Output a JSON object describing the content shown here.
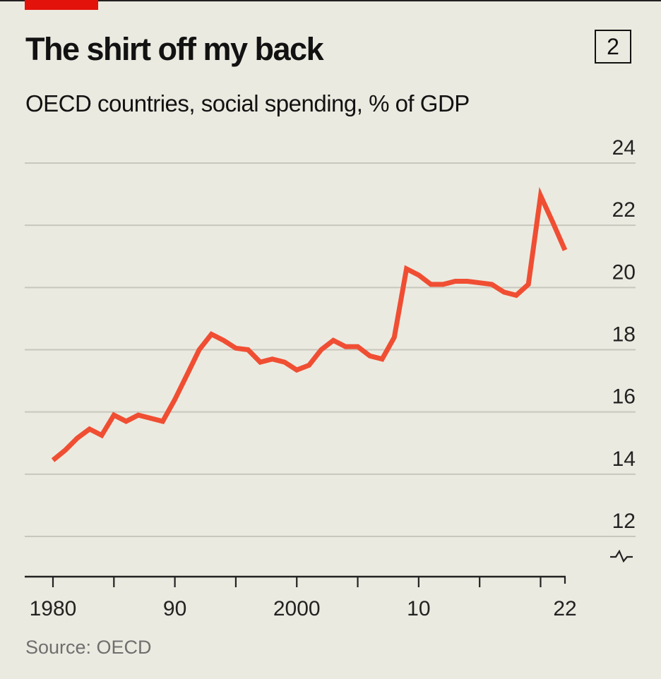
{
  "header": {
    "title": "The shirt off my back",
    "chart_number": "2",
    "subtitle": "OECD countries, social spending, % of GDP"
  },
  "footer": {
    "source": "Source: OECD"
  },
  "colors": {
    "line": "#f04e33",
    "grid": "#c8c7bd",
    "background": "#ebeae0",
    "brand": "#e3120b"
  },
  "chart_data": {
    "type": "line",
    "title": "The shirt off my back",
    "subtitle": "OECD countries, social spending, % of GDP",
    "xlabel": "",
    "ylabel": "% of GDP",
    "ylim": [
      12,
      24
    ],
    "xlim": [
      1980,
      2022
    ],
    "y_ticks": [
      "12",
      "14",
      "16",
      "18",
      "20",
      "22",
      "24"
    ],
    "y_tick_values": [
      12,
      14,
      16,
      18,
      20,
      22,
      24
    ],
    "x_tick_labels": [
      {
        "v": 1980,
        "label": "1980"
      },
      {
        "v": 1990,
        "label": "90"
      },
      {
        "v": 2000,
        "label": "2000"
      },
      {
        "v": 2010,
        "label": "10"
      },
      {
        "v": 2022,
        "label": "22"
      }
    ],
    "grid": true,
    "axis_break": true,
    "series": [
      {
        "name": "Social spending",
        "x": [
          1980,
          1981,
          1982,
          1983,
          1984,
          1985,
          1986,
          1987,
          1988,
          1989,
          1990,
          1991,
          1992,
          1993,
          1994,
          1995,
          1996,
          1997,
          1998,
          1999,
          2000,
          2001,
          2002,
          2003,
          2004,
          2005,
          2006,
          2007,
          2008,
          2009,
          2010,
          2011,
          2012,
          2013,
          2014,
          2015,
          2016,
          2017,
          2018,
          2019,
          2020,
          2021,
          2022
        ],
        "values": [
          14.45,
          14.77,
          15.16,
          15.45,
          15.25,
          15.9,
          15.7,
          15.9,
          15.8,
          15.7,
          16.4,
          17.2,
          18.0,
          18.5,
          18.3,
          18.05,
          18.0,
          17.6,
          17.7,
          17.6,
          17.35,
          17.5,
          18.0,
          18.3,
          18.1,
          18.1,
          17.8,
          17.7,
          18.4,
          20.6,
          20.4,
          20.1,
          20.1,
          20.2,
          20.2,
          20.15,
          20.1,
          19.85,
          19.75,
          20.1,
          22.95,
          22.1,
          21.2
        ]
      }
    ]
  }
}
